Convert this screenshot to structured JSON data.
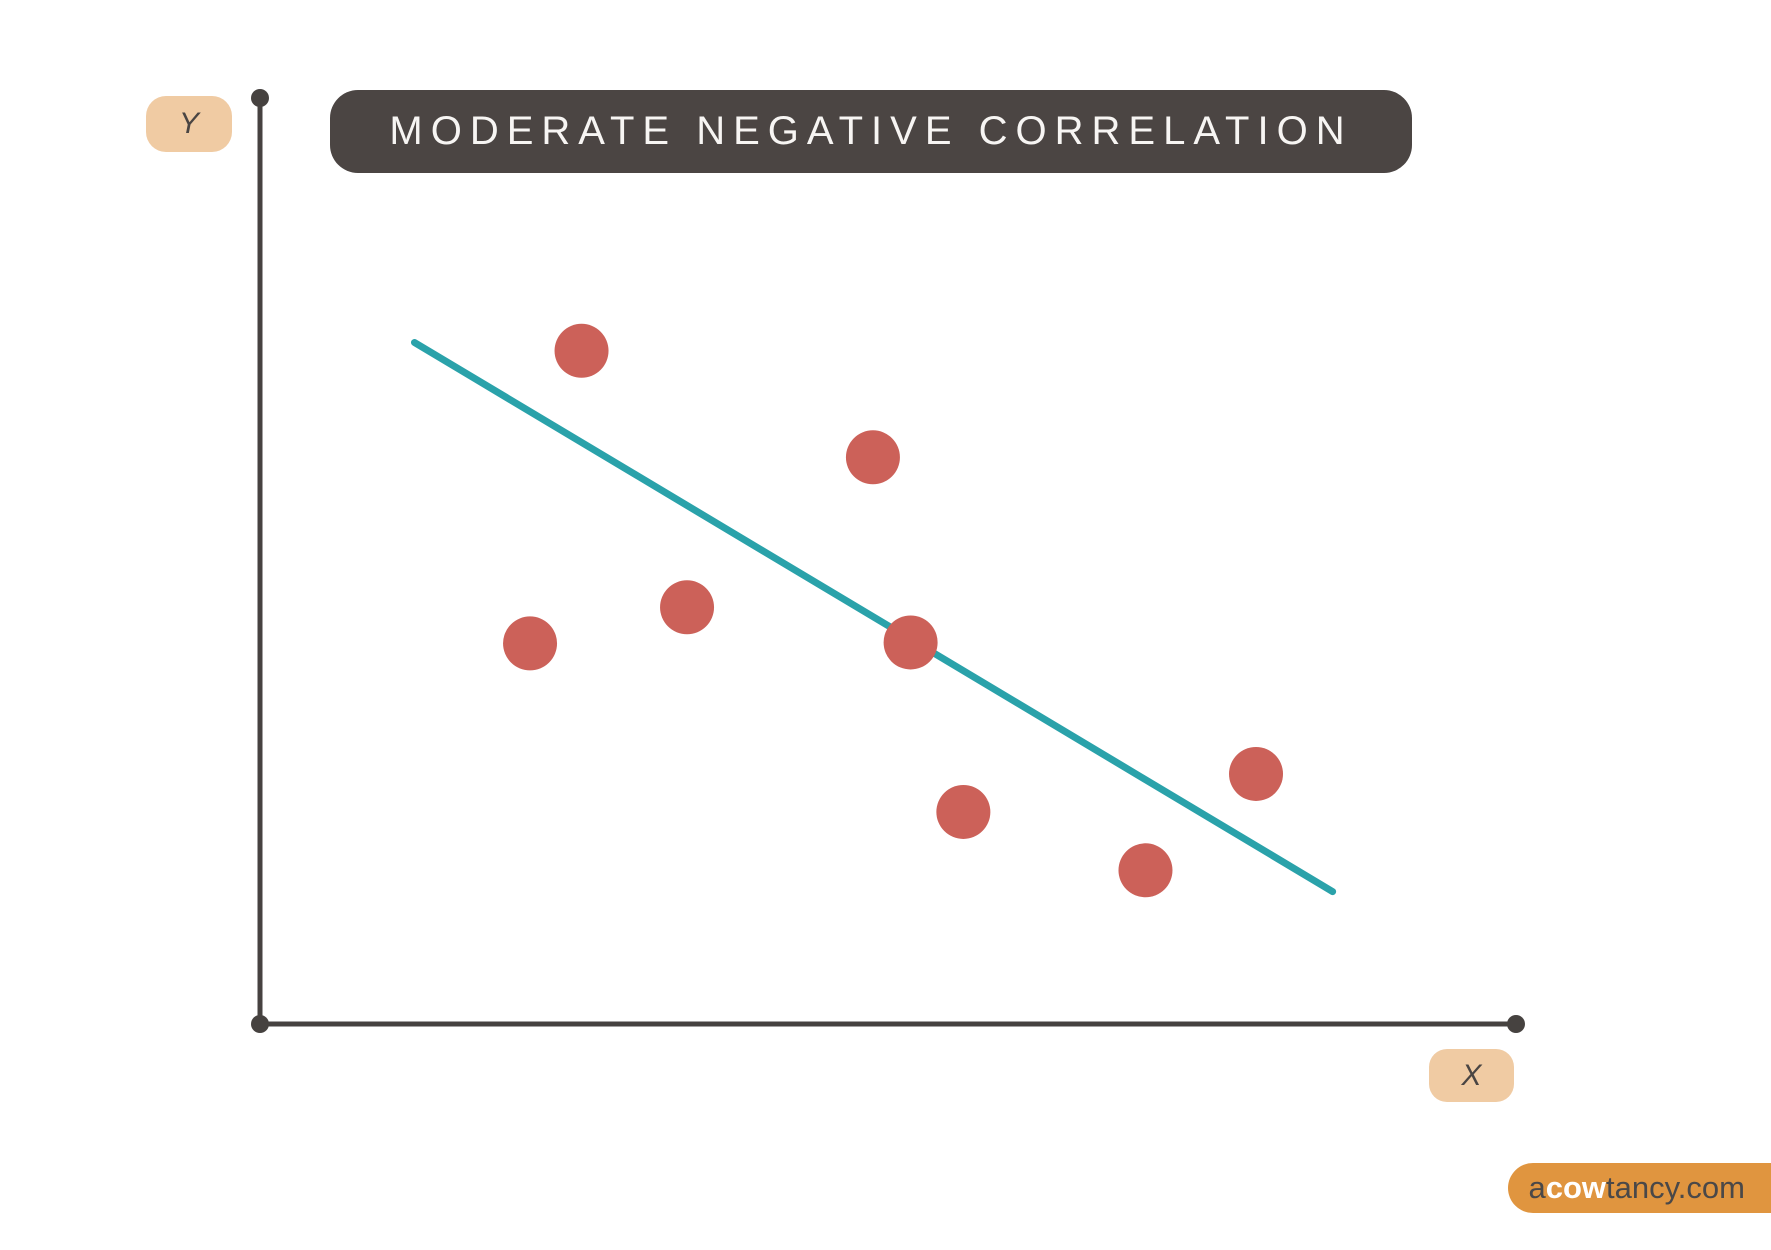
{
  "title": {
    "text": "MODERATE NEGATIVE CORRELATION"
  },
  "axes": {
    "y_label": "Y",
    "x_label": "X"
  },
  "brand": {
    "prefix": "a",
    "highlight": "cow",
    "suffix": "tancy.com"
  },
  "colors": {
    "background": "#ffffff",
    "point": "#cc6159",
    "trend_line": "#2aa2aa",
    "axis": "#464240",
    "banner_bg": "#4b4543",
    "banner_text": "#f7f5f3",
    "badge_bg": "#f0cba3",
    "badge_text": "#4a4543",
    "brand_bg": "#e0953f",
    "brand_text_dark": "#4a4848",
    "brand_text_light": "#ffffff"
  },
  "chart_data": {
    "type": "scatter",
    "title": "MODERATE NEGATIVE CORRELATION",
    "xlabel": "X",
    "ylabel": "Y",
    "grid": false,
    "axis_ticks": "none",
    "axis_range_note": "conceptual diagram, unlabeled axes normalized 0-1",
    "points": [
      {
        "x": 0.256,
        "y": 0.727
      },
      {
        "x": 0.488,
        "y": 0.612
      },
      {
        "x": 0.34,
        "y": 0.45
      },
      {
        "x": 0.215,
        "y": 0.411
      },
      {
        "x": 0.518,
        "y": 0.412
      },
      {
        "x": 0.56,
        "y": 0.229
      },
      {
        "x": 0.705,
        "y": 0.166
      },
      {
        "x": 0.793,
        "y": 0.27
      }
    ],
    "trend_line": {
      "x1": 0.123,
      "y1": 0.736,
      "x2": 0.854,
      "y2": 0.143
    }
  }
}
